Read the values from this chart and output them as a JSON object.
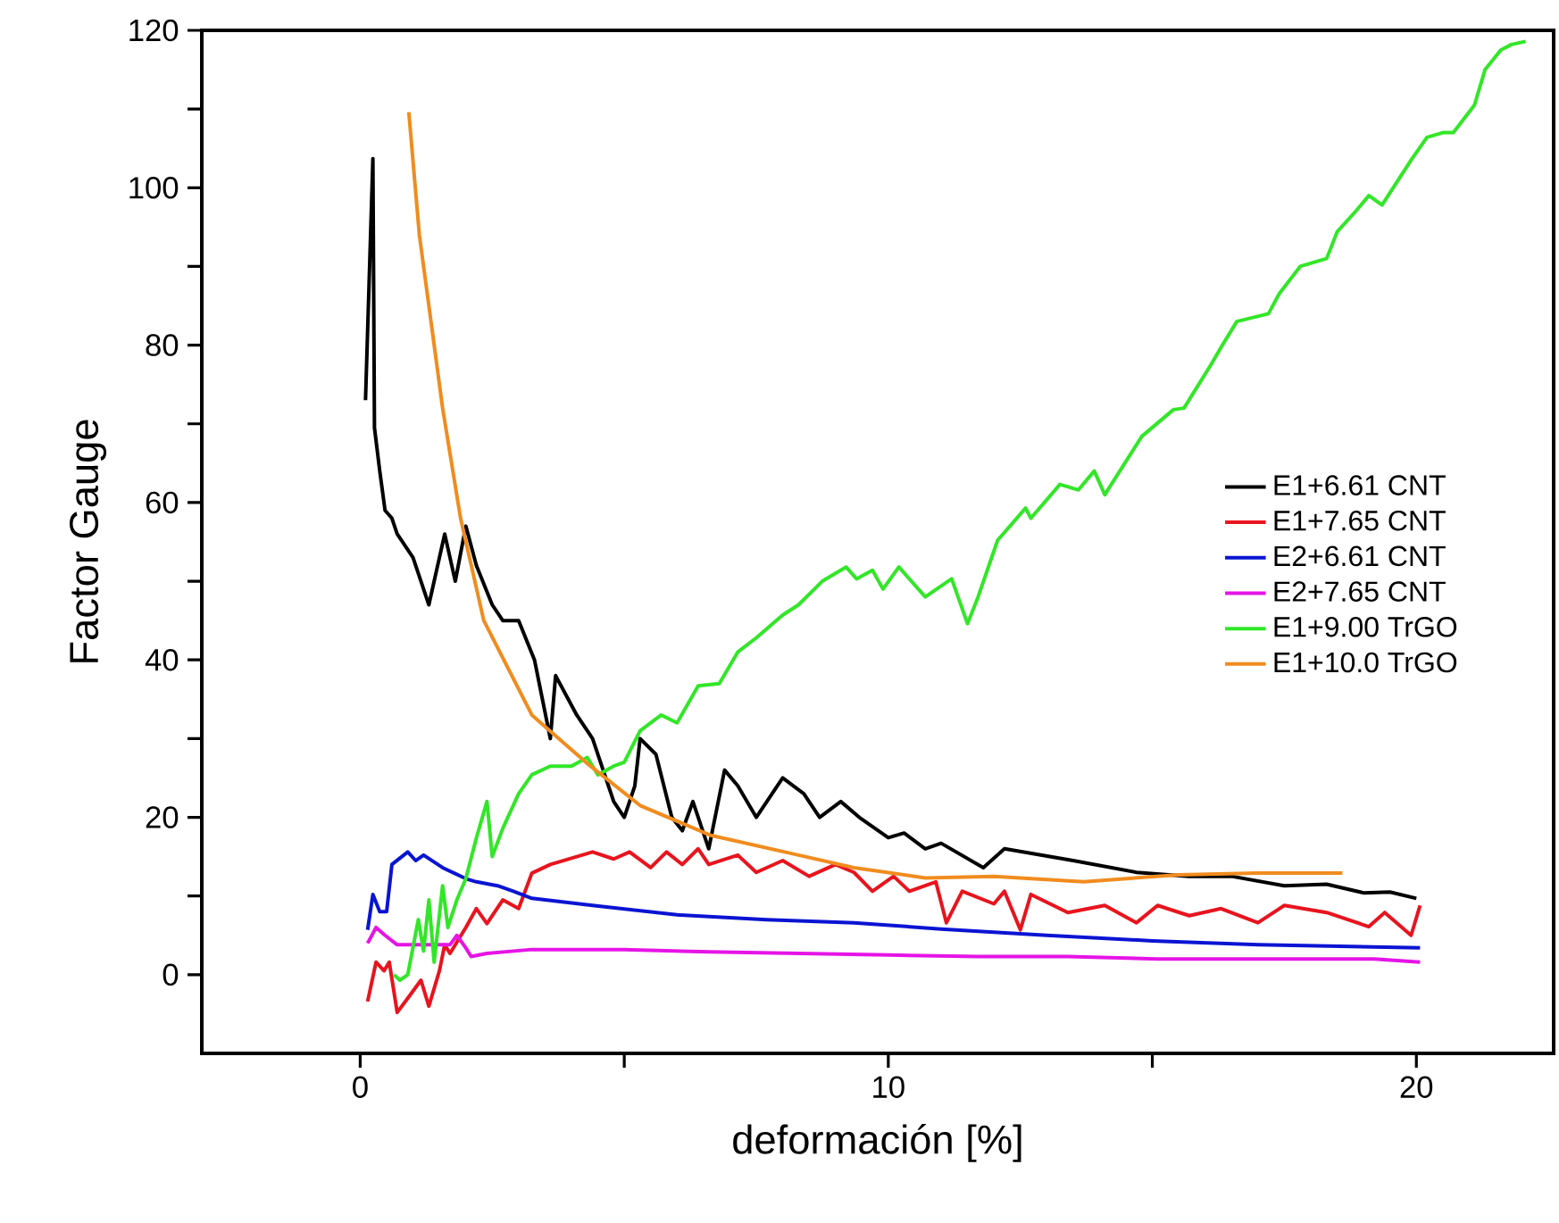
{
  "chart_data": {
    "type": "line",
    "xlabel": "deformación [%]",
    "ylabel": "Factor Gauge",
    "xlim": [
      -3,
      22.6
    ],
    "ylim": [
      -10,
      120
    ],
    "xticks": [
      0,
      {
        "value": 5,
        "label": null
      },
      10,
      {
        "value": 15,
        "label": null
      },
      20
    ],
    "yticks": [
      0,
      {
        "value": 10,
        "label": null
      },
      20,
      {
        "value": 30,
        "label": null
      },
      40,
      {
        "value": 50,
        "label": null
      },
      60,
      {
        "value": 70,
        "label": null
      },
      80,
      {
        "value": 90,
        "label": null
      },
      100,
      {
        "value": 110,
        "label": null
      },
      120
    ],
    "legend": "right",
    "series": [
      {
        "name": "E1+6.61 CNT",
        "color": "#000000",
        "x": [
          0.1,
          0.24,
          0.27,
          0.37,
          0.47,
          0.6,
          0.7,
          1.0,
          1.3,
          1.6,
          1.8,
          2.0,
          2.2,
          2.5,
          2.7,
          3.0,
          3.3,
          3.6,
          3.7,
          4.1,
          4.4,
          4.8,
          5.0,
          5.2,
          5.3,
          5.6,
          5.9,
          6.1,
          6.3,
          6.6,
          6.9,
          7.15,
          7.5,
          8.0,
          8.4,
          8.7,
          9.1,
          9.45,
          10.0,
          10.3,
          10.7,
          11.0,
          11.8,
          12.2,
          13.5,
          14.7,
          15.7,
          16.5,
          17.5,
          18.3,
          19.0,
          19.5,
          20.0
        ],
        "values": [
          73,
          103.7,
          69.5,
          64,
          59,
          58,
          56,
          53,
          47,
          56,
          50,
          57,
          52,
          47,
          45,
          45,
          40,
          30,
          38,
          33,
          30,
          22,
          20,
          24,
          30,
          28,
          20,
          18.3,
          22,
          16,
          26,
          24,
          20,
          25,
          23,
          20,
          22,
          20,
          17.4,
          18,
          16,
          16.7,
          13.6,
          16,
          14.5,
          13,
          12.5,
          12.5,
          11.3,
          11.5,
          10.4,
          10.5,
          9.7
        ]
      },
      {
        "name": "E1+7.65 CNT",
        "color": "#e8141e",
        "x": [
          0.14,
          0.3,
          0.45,
          0.55,
          0.7,
          0.9,
          1.15,
          1.3,
          1.5,
          1.6,
          1.7,
          2.0,
          2.2,
          2.4,
          2.7,
          3.0,
          3.25,
          3.6,
          4.1,
          4.4,
          4.8,
          5.1,
          5.5,
          5.8,
          6.1,
          6.4,
          6.6,
          7.15,
          7.5,
          8.0,
          8.5,
          9.0,
          9.35,
          9.7,
          10.1,
          10.4,
          10.9,
          11.1,
          11.4,
          12.0,
          12.2,
          12.5,
          12.7,
          13.4,
          14.1,
          14.7,
          15.1,
          15.7,
          16.3,
          17.0,
          17.5,
          18.3,
          19.1,
          19.4,
          19.9,
          20.07
        ],
        "values": [
          -3.4,
          1.6,
          0.5,
          1.6,
          -4.8,
          -3,
          -0.7,
          -4,
          0.5,
          3.8,
          2.7,
          6,
          8.4,
          6.5,
          9.5,
          8.4,
          12.9,
          14,
          15,
          15.6,
          14.7,
          15.6,
          13.6,
          15.6,
          14,
          16,
          14,
          15.2,
          13,
          14.5,
          12.5,
          14,
          13,
          10.6,
          12.5,
          10.6,
          11.8,
          6.6,
          10.6,
          9,
          10.6,
          5.7,
          10.2,
          7.9,
          8.8,
          6.6,
          8.8,
          7.5,
          8.4,
          6.6,
          8.8,
          7.9,
          6.1,
          7.9,
          5,
          8.8
        ]
      },
      {
        "name": "E2+6.61 CNT",
        "color": "#0a14d2",
        "x": [
          0.14,
          0.24,
          0.37,
          0.5,
          0.6,
          0.9,
          1.05,
          1.2,
          1.56,
          2.0,
          2.2,
          2.6,
          2.9,
          3.25,
          4.4,
          6.0,
          7.7,
          9.35,
          11.0,
          13.0,
          15.0,
          17.0,
          20.07
        ],
        "values": [
          5.7,
          10.2,
          8,
          8,
          14,
          15.6,
          14.5,
          15.2,
          13.6,
          12.2,
          11.8,
          11.3,
          10.6,
          9.7,
          8.8,
          7.6,
          7.0,
          6.6,
          5.8,
          5,
          4.3,
          3.8,
          3.4
        ]
      },
      {
        "name": "E2+7.65 CNT",
        "color": "#e614e6",
        "x": [
          0.14,
          0.3,
          0.47,
          0.7,
          1.2,
          1.7,
          1.83,
          2.0,
          2.1,
          2.4,
          3.25,
          5.0,
          6.6,
          8.3,
          10.0,
          11.7,
          13.4,
          15.1,
          16.8,
          19.2,
          20.07
        ],
        "values": [
          4,
          6,
          5,
          3.8,
          3.8,
          3.8,
          5,
          3.4,
          2.3,
          2.7,
          3.2,
          3.2,
          2.9,
          2.7,
          2.5,
          2.3,
          2.3,
          2,
          2,
          2,
          1.6
        ]
      },
      {
        "name": "E1+9.00 TrGO",
        "color": "#32e628",
        "x": [
          0.64,
          0.75,
          0.9,
          1.1,
          1.2,
          1.3,
          1.4,
          1.56,
          1.66,
          1.83,
          2.0,
          2.2,
          2.4,
          2.5,
          2.7,
          3.0,
          3.25,
          3.6,
          4.0,
          4.3,
          4.5,
          4.8,
          5.0,
          5.3,
          5.7,
          6.0,
          6.4,
          6.8,
          7.15,
          7.5,
          8.0,
          8.3,
          8.75,
          9.2,
          9.4,
          9.7,
          9.9,
          10.2,
          10.7,
          11.2,
          11.5,
          11.7,
          12.07,
          12.6,
          12.7,
          13.25,
          13.6,
          13.9,
          14.1,
          14.8,
          15.4,
          15.6,
          16.1,
          16.3,
          16.6,
          17.2,
          17.4,
          17.8,
          18.3,
          18.5,
          18.85,
          19.1,
          19.35,
          19.9,
          20.2,
          20.5,
          20.7,
          21.1,
          21.3,
          21.6,
          21.8,
          22.07
        ],
        "values": [
          0,
          -0.7,
          0,
          7,
          3,
          9.5,
          1.6,
          11.3,
          6,
          9.5,
          12.2,
          17.4,
          22,
          15,
          18.6,
          23,
          25.4,
          26.5,
          26.5,
          27.6,
          25.4,
          26.5,
          27,
          31,
          33,
          32,
          36.7,
          37,
          41,
          42.8,
          45.7,
          47,
          50,
          51.8,
          50.3,
          51.4,
          49,
          51.8,
          48,
          50.3,
          44.6,
          48,
          55.2,
          59.3,
          58,
          62.3,
          61.6,
          64,
          61,
          68.4,
          71.8,
          72,
          77.4,
          79.7,
          83,
          84,
          86.5,
          90,
          91,
          94.4,
          97,
          99,
          97.8,
          103.5,
          106.4,
          107,
          107,
          110.5,
          115,
          117.5,
          118.2,
          118.6
        ]
      },
      {
        "name": "E1+10.0 TrGO",
        "color": "#f08c1e",
        "x": [
          0.92,
          1.12,
          1.32,
          1.56,
          1.9,
          2.34,
          3.25,
          4.27,
          5.3,
          6.64,
          8.3,
          9.35,
          10.7,
          12.0,
          13.7,
          15.5,
          17.0,
          18.6
        ],
        "values": [
          109.6,
          94,
          84,
          72,
          58,
          45,
          33,
          27,
          21.5,
          17.7,
          15.2,
          13.6,
          12.3,
          12.5,
          11.8,
          12.7,
          12.9,
          12.9
        ]
      }
    ]
  }
}
